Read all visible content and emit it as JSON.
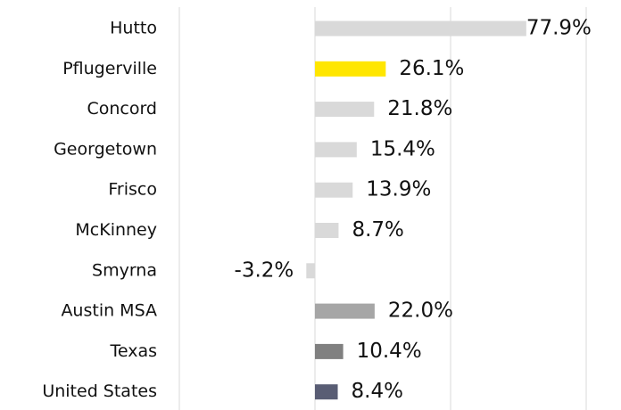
{
  "chart_data": {
    "type": "hbar",
    "categories": [
      "Hutto",
      "Pflugerville",
      "Concord",
      "Georgetown",
      "Frisco",
      "McKinney",
      "Smyrna",
      "Austin MSA",
      "Texas",
      "United States"
    ],
    "values": [
      77.9,
      26.1,
      21.8,
      15.4,
      13.9,
      8.7,
      -3.2,
      22.0,
      10.4,
      8.4
    ],
    "value_labels": [
      "77.9%",
      "26.1%",
      "21.8%",
      "15.4%",
      "13.9%",
      "8.7%",
      "-3.2%",
      "22.0%",
      "10.4%",
      "8.4%"
    ],
    "colors": [
      "#d9d9d9",
      "#ffe600",
      "#d9d9d9",
      "#d9d9d9",
      "#d9d9d9",
      "#d9d9d9",
      "#d9d9d9",
      "#a6a6a6",
      "#808080",
      "#595d74"
    ],
    "xlim": [
      -50,
      100
    ],
    "xticks": [
      -50,
      0,
      50,
      100
    ],
    "grid": true
  }
}
